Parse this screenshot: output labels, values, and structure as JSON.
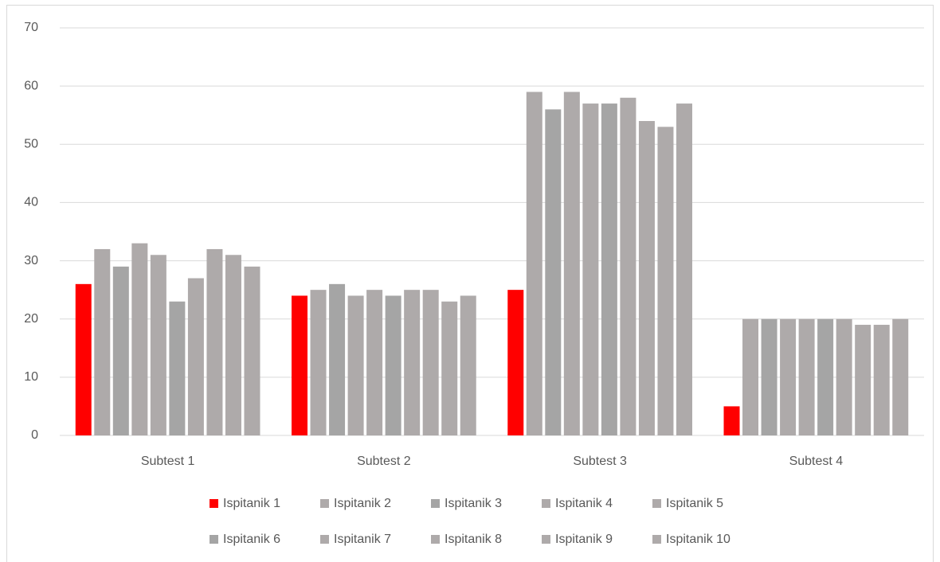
{
  "chart_data": {
    "type": "bar",
    "categories": [
      "Subtest 1",
      "Subtest 2",
      "Subtest 3",
      "Subtest 4"
    ],
    "series": [
      {
        "name": "Ispitanik 1",
        "color": "#ff0000",
        "values": [
          26,
          24,
          25,
          5
        ]
      },
      {
        "name": "Ispitanik 2",
        "color": "#aeaaaa",
        "values": [
          32,
          25,
          59,
          20
        ]
      },
      {
        "name": "Ispitanik 3",
        "color": "#a5a5a5",
        "values": [
          29,
          26,
          56,
          20
        ]
      },
      {
        "name": "Ispitanik 4",
        "color": "#aeaaaa",
        "values": [
          33,
          24,
          59,
          20
        ]
      },
      {
        "name": "Ispitanik 5",
        "color": "#aeaaaa",
        "values": [
          31,
          25,
          57,
          20
        ]
      },
      {
        "name": "Ispitanik 6",
        "color": "#a5a5a5",
        "values": [
          23,
          24,
          57,
          20
        ]
      },
      {
        "name": "Ispitanik 7",
        "color": "#aeaaaa",
        "values": [
          27,
          25,
          58,
          20
        ]
      },
      {
        "name": "Ispitanik 8",
        "color": "#aeaaaa",
        "values": [
          32,
          25,
          54,
          19
        ]
      },
      {
        "name": "Ispitanik 9",
        "color": "#aeaaaa",
        "values": [
          31,
          23,
          53,
          19
        ]
      },
      {
        "name": "Ispitanik 10",
        "color": "#aeaaaa",
        "values": [
          29,
          24,
          57,
          20
        ]
      }
    ],
    "ylim": [
      0,
      70
    ],
    "yticks": [
      0,
      10,
      20,
      30,
      40,
      50,
      60,
      70
    ],
    "grid": true,
    "legend": "bottom"
  }
}
